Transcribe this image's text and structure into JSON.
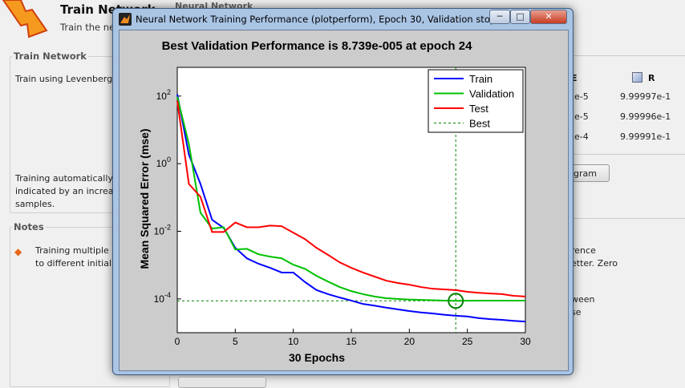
{
  "app": {
    "header_title": "Train Network",
    "header_subtitle": "Train the ne",
    "top_right_label": "Neural Network",
    "train_group": {
      "label": "Train Network",
      "method_text": "Train using Levenberg-",
      "info_lines": [
        "Training automatically",
        "indicated by an increas",
        "samples."
      ]
    },
    "notes_group": {
      "label": "Notes",
      "lines": [
        "Training multiple",
        "to different initial"
      ]
    },
    "results": {
      "col_mse": "E",
      "col_r": "R",
      "rows": [
        {
          "mse": "e-5",
          "r": "9.99997e-1"
        },
        {
          "mse": "e-5",
          "r": "9.99996e-1"
        },
        {
          "mse": "e-4",
          "r": "9.99991e-1"
        }
      ]
    },
    "plot_button": "gram",
    "right_notes": [
      "rence",
      "etter. Zero",
      "ween",
      "se"
    ]
  },
  "figure_window": {
    "title": "Neural Network Training Performance (plotperform), Epoch 30, Validation stop.",
    "buttons": {
      "minimize": "─",
      "maximize": "□",
      "close": "✕"
    }
  },
  "chart_data": {
    "type": "line",
    "title": "Best Validation Performance is 8.739e-005 at epoch 24",
    "xlabel": "30 Epochs",
    "ylabel": "Mean Squared Error  (mse)",
    "yscale": "log",
    "xlim": [
      0,
      30
    ],
    "ylim_log10": [
      -5,
      2.85
    ],
    "xticks": [
      "0",
      "5",
      "10",
      "15",
      "20",
      "25",
      "30"
    ],
    "xtick_values": [
      0,
      5,
      10,
      15,
      20,
      25,
      30
    ],
    "yticks": [
      {
        "base": "10",
        "exp": "2",
        "value_log10": 2
      },
      {
        "base": "10",
        "exp": "0",
        "value_log10": 0
      },
      {
        "base": "10",
        "exp": "-2",
        "value_log10": -2
      },
      {
        "base": "10",
        "exp": "-4",
        "value_log10": -4
      }
    ],
    "x": [
      0,
      1,
      2,
      3,
      4,
      5,
      6,
      7,
      8,
      9,
      10,
      11,
      12,
      13,
      14,
      15,
      16,
      17,
      18,
      19,
      20,
      21,
      22,
      23,
      24,
      25,
      26,
      27,
      28,
      29,
      30
    ],
    "series": [
      {
        "name": "Train",
        "color": "#0000ff",
        "y_log10": [
          2.05,
          0.27,
          -0.6,
          -1.66,
          -1.9,
          -2.49,
          -2.8,
          -2.96,
          -3.08,
          -3.22,
          -3.22,
          -3.5,
          -3.74,
          -3.86,
          -3.96,
          -4.05,
          -4.15,
          -4.2,
          -4.26,
          -4.31,
          -4.36,
          -4.4,
          -4.43,
          -4.47,
          -4.5,
          -4.52,
          -4.57,
          -4.6,
          -4.62,
          -4.65,
          -4.67
        ]
      },
      {
        "name": "Validation",
        "color": "#00c000",
        "y_log10": [
          1.98,
          0.58,
          -1.45,
          -1.92,
          -1.88,
          -2.54,
          -2.52,
          -2.68,
          -2.75,
          -2.8,
          -2.99,
          -3.11,
          -3.32,
          -3.49,
          -3.65,
          -3.77,
          -3.86,
          -3.93,
          -3.98,
          -4.0,
          -4.02,
          -4.03,
          -4.04,
          -4.05,
          -4.058,
          -4.055,
          -4.05,
          -4.05,
          -4.05,
          -4.05,
          -4.05
        ]
      },
      {
        "name": "Test",
        "color": "#ff0000",
        "y_log10": [
          1.86,
          -0.6,
          -0.98,
          -2.02,
          -2.02,
          -1.74,
          -1.88,
          -1.88,
          -1.83,
          -1.85,
          -2.04,
          -2.23,
          -2.49,
          -2.7,
          -2.92,
          -3.08,
          -3.22,
          -3.34,
          -3.46,
          -3.53,
          -3.58,
          -3.65,
          -3.7,
          -3.72,
          -3.74,
          -3.79,
          -3.82,
          -3.84,
          -3.86,
          -3.91,
          -3.93
        ]
      }
    ],
    "best": {
      "name": "Best",
      "epoch": 24,
      "value": 8.739e-05,
      "color": "#008000"
    },
    "legend_position": "top-right",
    "grid": false
  }
}
